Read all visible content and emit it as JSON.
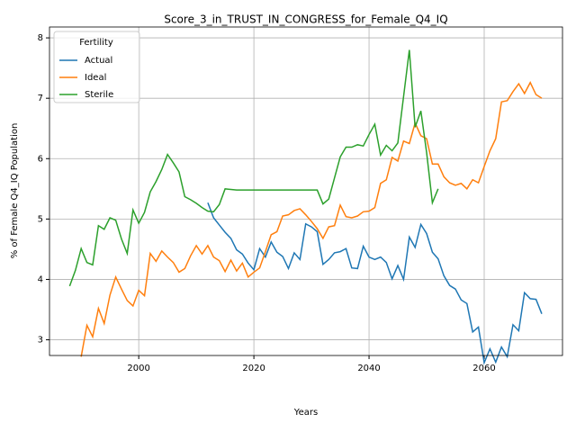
{
  "chart_data": {
    "type": "line",
    "title": "Score_3_in_TRUST_IN_CONGRESS_for_Female_Q4_IQ",
    "x_label": "Years",
    "y_label": "% of Female Q4_IQ Population",
    "legend_title": "Fertility",
    "legend": "upper left",
    "grid": true,
    "xlim": [
      1984.5,
      2073.6
    ],
    "ylim": [
      2.74,
      8.18
    ],
    "xticks": [
      2000,
      2020,
      2040,
      2060
    ],
    "yticks": [
      3,
      4,
      5,
      6,
      7,
      8
    ],
    "x": [
      1988,
      1989,
      1990,
      1991,
      1992,
      1993,
      1994,
      1995,
      1996,
      1997,
      1998,
      1999,
      2000,
      2001,
      2002,
      2003,
      2004,
      2005,
      2006,
      2007,
      2008,
      2009,
      2010,
      2011,
      2012,
      2013,
      2014,
      2015,
      2016,
      2017,
      2018,
      2019,
      2020,
      2021,
      2022,
      2023,
      2024,
      2025,
      2026,
      2027,
      2028,
      2029,
      2030,
      2031,
      2032,
      2033,
      2034,
      2035,
      2036,
      2037,
      2038,
      2039,
      2040,
      2041,
      2042,
      2043,
      2044,
      2045,
      2046,
      2047,
      2048,
      2049,
      2050,
      2051,
      2052,
      2053,
      2054,
      2055,
      2056,
      2057,
      2058,
      2059,
      2060,
      2061,
      2062,
      2063,
      2064,
      2065,
      2066,
      2067,
      2068,
      2069,
      2070
    ],
    "series": [
      {
        "name": "Actual",
        "color": "#1f77b4",
        "values": [
          null,
          null,
          null,
          null,
          null,
          null,
          null,
          null,
          null,
          null,
          null,
          null,
          null,
          null,
          null,
          null,
          null,
          null,
          null,
          null,
          null,
          null,
          null,
          null,
          5.27,
          5.02,
          4.9,
          4.78,
          4.68,
          4.49,
          4.42,
          4.27,
          4.16,
          4.51,
          4.37,
          4.62,
          4.45,
          4.38,
          4.18,
          4.44,
          4.33,
          4.92,
          4.87,
          4.79,
          4.25,
          4.33,
          4.44,
          4.46,
          4.51,
          4.19,
          4.18,
          4.55,
          4.37,
          4.33,
          4.37,
          4.28,
          4.01,
          4.23,
          4.0,
          4.7,
          4.53,
          4.91,
          4.76,
          4.45,
          4.34,
          4.06,
          3.9,
          3.84,
          3.66,
          3.6,
          3.13,
          3.21,
          2.62,
          2.85,
          2.63,
          2.88,
          2.72,
          3.25,
          3.15,
          3.78,
          3.68,
          3.67,
          3.43
        ]
      },
      {
        "name": "Ideal",
        "color": "#ff7f0e",
        "values": [
          null,
          null,
          2.72,
          3.24,
          3.05,
          3.52,
          3.27,
          3.74,
          4.04,
          3.84,
          3.65,
          3.56,
          3.82,
          3.73,
          4.43,
          4.3,
          4.47,
          4.37,
          4.28,
          4.12,
          4.18,
          4.39,
          4.56,
          4.42,
          4.56,
          4.37,
          4.31,
          4.13,
          4.32,
          4.14,
          4.27,
          4.04,
          4.12,
          4.19,
          4.46,
          4.74,
          4.79,
          5.05,
          5.07,
          5.14,
          5.17,
          5.07,
          4.96,
          4.84,
          4.68,
          4.87,
          4.89,
          5.23,
          5.04,
          5.02,
          5.05,
          5.12,
          5.13,
          5.19,
          5.59,
          5.65,
          6.02,
          5.96,
          6.29,
          6.25,
          6.59,
          6.38,
          6.33,
          5.91,
          5.91,
          5.7,
          5.6,
          5.56,
          5.59,
          5.5,
          5.65,
          5.6,
          5.87,
          6.13,
          6.33,
          6.94,
          6.96,
          7.11,
          7.24,
          7.08,
          7.26,
          7.06,
          7.0
        ]
      },
      {
        "name": "Sterile",
        "color": "#2ca02c",
        "values": [
          3.89,
          4.15,
          4.51,
          4.28,
          4.24,
          4.89,
          4.83,
          5.02,
          4.98,
          4.67,
          4.43,
          5.15,
          4.93,
          5.11,
          5.45,
          5.62,
          5.82,
          6.07,
          5.93,
          5.78,
          5.37,
          5.32,
          5.26,
          5.19,
          5.13,
          5.12,
          5.24,
          5.5,
          5.49,
          5.48,
          5.48,
          5.48,
          5.48,
          5.48,
          5.48,
          5.48,
          5.48,
          5.48,
          5.48,
          5.48,
          5.48,
          5.48,
          5.48,
          5.48,
          5.25,
          5.33,
          5.68,
          6.03,
          6.19,
          6.19,
          6.23,
          6.21,
          6.4,
          6.57,
          6.06,
          6.22,
          6.13,
          6.26,
          7.03,
          7.8,
          6.52,
          6.79,
          6.1,
          5.27,
          5.5,
          null,
          null,
          null,
          null,
          null,
          null,
          null,
          null,
          null,
          null,
          null,
          null,
          null,
          null,
          null,
          null,
          null,
          null
        ]
      }
    ]
  }
}
